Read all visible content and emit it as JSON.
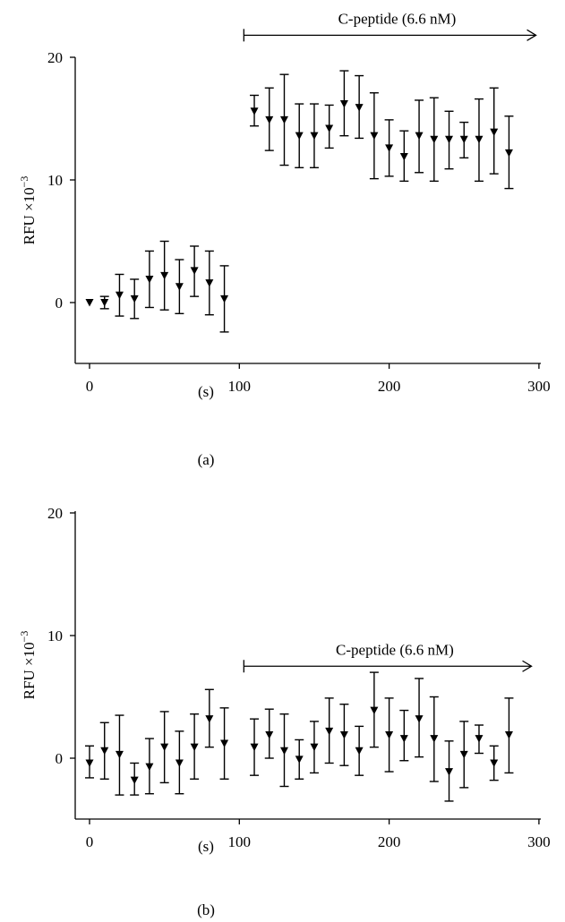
{
  "chart_data": [
    {
      "type": "scatter",
      "panel_label": "(a)",
      "xlabel": "(s)",
      "ylabel": "RFU ×10",
      "ylabel_exponent": "−3",
      "xlim": [
        0,
        300
      ],
      "ylim": [
        -5,
        20
      ],
      "xticks": [
        0,
        100,
        200,
        300
      ],
      "yticks": [
        0,
        10,
        20
      ],
      "annotation": {
        "text": "C-peptide (6.6 nM)",
        "x_start": 103,
        "x_end": 298,
        "y": 21.8
      },
      "series": [
        {
          "x": [
            0,
            10,
            20,
            30,
            40,
            50,
            60,
            70,
            80,
            90,
            110,
            120,
            130,
            140,
            150,
            160,
            170,
            180,
            190,
            200,
            210,
            220,
            230,
            240,
            250,
            260,
            270,
            280
          ],
          "y": [
            0.0,
            0.0,
            0.6,
            0.3,
            1.9,
            2.2,
            1.3,
            2.6,
            1.6,
            0.3,
            15.6,
            14.9,
            14.9,
            13.6,
            13.6,
            14.2,
            16.2,
            15.9,
            13.6,
            12.6,
            11.9,
            13.6,
            13.3,
            13.3,
            13.3,
            13.3,
            13.9,
            12.2
          ],
          "err_low": [
            0.1,
            0.5,
            1.7,
            1.6,
            2.3,
            2.8,
            2.2,
            2.1,
            2.6,
            2.7,
            1.2,
            2.5,
            3.7,
            2.6,
            2.6,
            1.6,
            2.6,
            2.5,
            3.5,
            2.3,
            2.0,
            3.0,
            3.4,
            2.4,
            1.5,
            3.4,
            3.4,
            2.9
          ],
          "err_high": [
            0.1,
            0.5,
            1.7,
            1.6,
            2.3,
            2.8,
            2.2,
            2.0,
            2.6,
            2.7,
            1.3,
            2.6,
            3.7,
            2.6,
            2.6,
            1.9,
            2.7,
            2.6,
            3.5,
            2.3,
            2.1,
            2.9,
            3.4,
            2.3,
            1.4,
            3.3,
            3.6,
            3.0
          ]
        }
      ]
    },
    {
      "type": "scatter",
      "panel_label": "(b)",
      "xlabel": "(s)",
      "ylabel": "RFU ×10",
      "ylabel_exponent": "−3",
      "xlim": [
        0,
        300
      ],
      "ylim": [
        -5,
        20
      ],
      "xticks": [
        0,
        100,
        200,
        300
      ],
      "yticks": [
        0,
        10,
        20
      ],
      "annotation": {
        "text": "C-peptide (6.6 nM)",
        "x_start": 103,
        "x_end": 295,
        "y": 7.5
      },
      "series": [
        {
          "x": [
            0,
            10,
            20,
            30,
            40,
            50,
            60,
            70,
            80,
            90,
            110,
            120,
            130,
            140,
            150,
            160,
            170,
            180,
            190,
            200,
            210,
            220,
            230,
            240,
            250,
            260,
            270,
            280
          ],
          "y": [
            -0.4,
            0.6,
            0.3,
            -1.8,
            -0.7,
            0.9,
            -0.4,
            0.9,
            3.2,
            1.2,
            0.9,
            1.9,
            0.6,
            -0.1,
            0.9,
            2.2,
            1.9,
            0.6,
            3.9,
            1.9,
            1.6,
            3.2,
            1.6,
            -1.1,
            0.3,
            1.6,
            -0.4,
            1.9
          ],
          "err_low": [
            1.2,
            2.3,
            3.3,
            1.2,
            2.2,
            2.9,
            2.5,
            2.6,
            2.3,
            2.9,
            2.3,
            1.9,
            2.9,
            1.6,
            2.1,
            2.6,
            2.5,
            2.0,
            3.0,
            3.0,
            1.8,
            3.1,
            3.5,
            2.4,
            2.7,
            1.2,
            1.4,
            3.1
          ],
          "err_high": [
            1.4,
            2.3,
            3.2,
            1.4,
            2.3,
            2.9,
            2.6,
            2.7,
            2.4,
            2.9,
            2.3,
            2.1,
            3.0,
            1.6,
            2.1,
            2.7,
            2.5,
            2.0,
            3.1,
            3.0,
            2.3,
            3.3,
            3.4,
            2.5,
            2.7,
            1.1,
            1.4,
            3.0
          ]
        }
      ]
    }
  ]
}
